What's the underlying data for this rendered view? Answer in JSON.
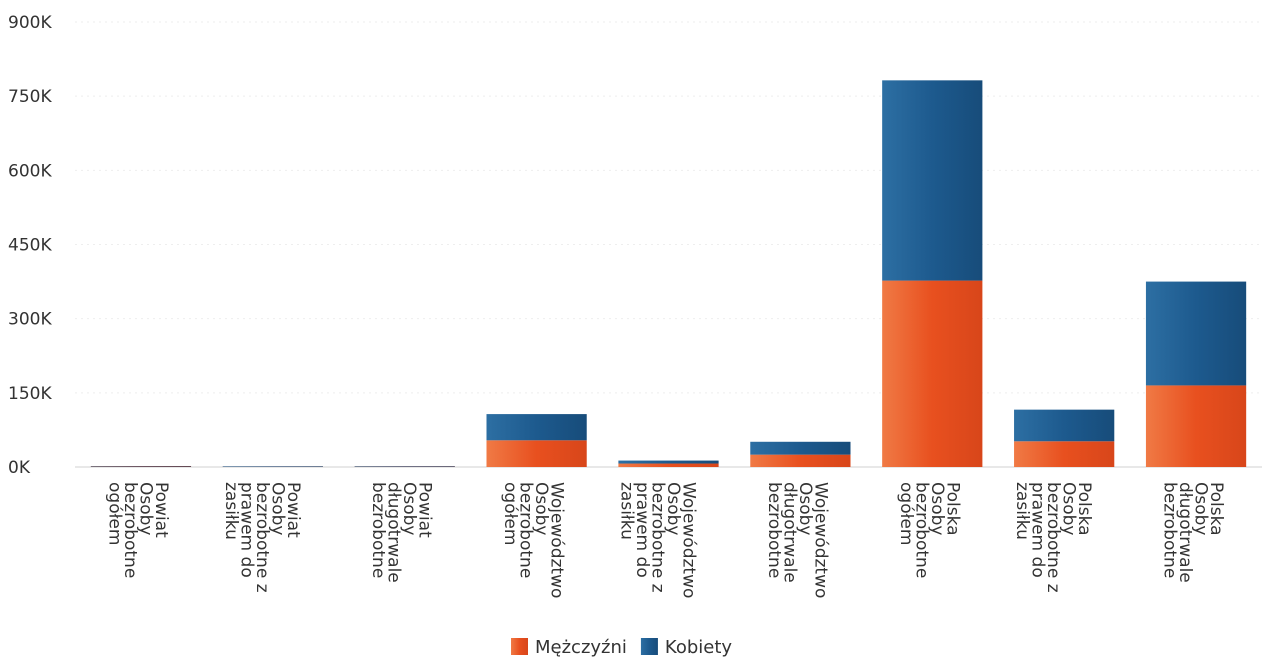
{
  "chart_data": {
    "type": "bar",
    "stacked": true,
    "orientation": "vertical",
    "categories": [
      [
        "Powiat",
        "Osoby",
        "bezrobotne",
        "ogółem"
      ],
      [
        "Powiat",
        "Osoby",
        "bezrobotne z",
        "prawem do",
        "zasiłku"
      ],
      [
        "Powiat",
        "Osoby",
        "długotrwale",
        "bezrobotne"
      ],
      [
        "Województwo",
        "Osoby",
        "bezrobotne",
        "ogółem"
      ],
      [
        "Województwo",
        "Osoby",
        "bezrobotne z",
        "prawem do",
        "zasiłku"
      ],
      [
        "Województwo",
        "Osoby",
        "długotrwale",
        "bezrobotne"
      ],
      [
        "Polska",
        "Osoby",
        "bezrobotne",
        "ogółem"
      ],
      [
        "Polska",
        "Osoby",
        "bezrobotne z",
        "prawem do",
        "zasiłku"
      ],
      [
        "Polska",
        "Osoby",
        "długotrwale",
        "bezrobotne"
      ]
    ],
    "series": [
      {
        "name": "Mężczyźni",
        "color": "#e85a2a",
        "values": [
          800,
          100,
          400,
          54000,
          7000,
          25000,
          377000,
          52000,
          165000
        ]
      },
      {
        "name": "Kobiety",
        "color": "#1f5a8c",
        "values": [
          900,
          100,
          500,
          53000,
          6000,
          26000,
          405000,
          64000,
          210000
        ]
      }
    ],
    "y_ticks": [
      "0K",
      "150K",
      "300K",
      "450K",
      "600K",
      "750K",
      "900K"
    ],
    "ylim": [
      0,
      900000
    ],
    "grid": true,
    "legend_position": "bottom-center",
    "title": "",
    "xlabel": "",
    "ylabel": ""
  }
}
